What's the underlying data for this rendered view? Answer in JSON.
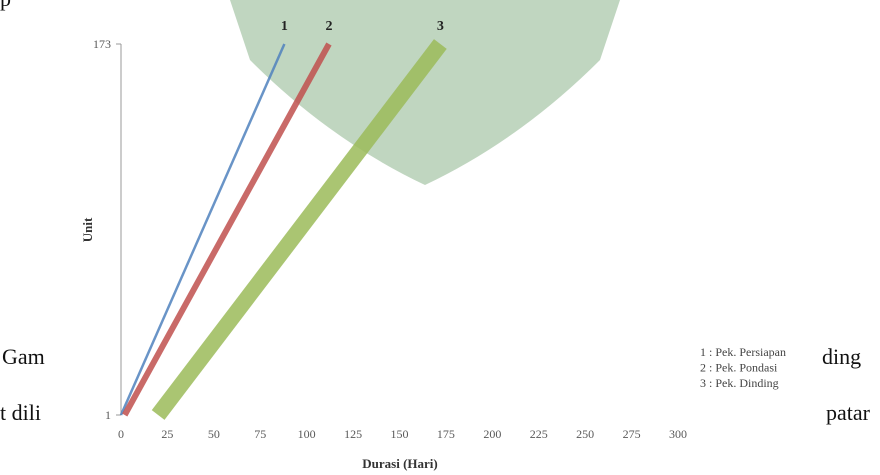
{
  "background_text": [
    "p",
    "Gam",
    "ding",
    "t dili",
    "patar"
  ],
  "chart_data": {
    "type": "line",
    "xlabel": "Durasi (Hari)",
    "ylabel": "Unit",
    "xlim": [
      0,
      300
    ],
    "xticks": [
      0,
      25,
      50,
      75,
      100,
      125,
      150,
      175,
      200,
      225,
      250,
      275,
      300
    ],
    "ylim": [
      1,
      173
    ],
    "yticks": [
      1,
      173
    ],
    "series": [
      {
        "name": "1 : Pek. Persiapan",
        "label": "1",
        "color": "#4f81bd",
        "x": [
          0,
          88
        ],
        "values": [
          1,
          173
        ]
      },
      {
        "name": "2 : Pek. Pondasi",
        "label": "2",
        "color": "#c0504d",
        "x": [
          2,
          112
        ],
        "values": [
          1,
          173
        ]
      },
      {
        "name": "3 : Pek. Dinding",
        "label": "3",
        "color": "#9bbb59",
        "x": [
          20,
          172
        ],
        "values": [
          1,
          173
        ]
      }
    ]
  }
}
